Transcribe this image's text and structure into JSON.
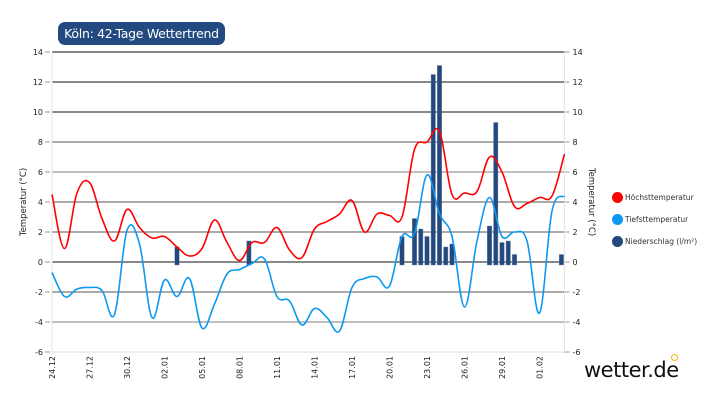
{
  "title": "Köln: 42-Tage Wettertrend",
  "logo": "wetter.de",
  "chart_data": {
    "type": "line+bar",
    "title": "Köln: 42-Tage Wettertrend",
    "ylabel_left": "Temperatur (°C)",
    "ylabel_right": "Temperatur (°C)",
    "ylim": [
      -6,
      14
    ],
    "yticks": [
      -6,
      -4,
      -2,
      0,
      2,
      4,
      6,
      8,
      10,
      12,
      14
    ],
    "grid": true,
    "legend_position": "right",
    "dates": [
      "24.12",
      "25.12",
      "26.12",
      "27.12",
      "28.12",
      "29.12",
      "30.12",
      "31.12",
      "01.01",
      "02.01",
      "03.01",
      "04.01",
      "05.01",
      "06.01",
      "07.01",
      "08.01",
      "09.01",
      "10.01",
      "11.01",
      "12.01",
      "13.01",
      "14.01",
      "15.01",
      "16.01",
      "17.01",
      "18.01",
      "19.01",
      "20.01",
      "21.01",
      "22.01",
      "23.01",
      "24.01",
      "25.01",
      "26.01",
      "27.01",
      "28.01",
      "29.01",
      "30.01",
      "31.01",
      "01.02",
      "02.02",
      "03.02"
    ],
    "xtick_labels": [
      "24.12",
      "27.12",
      "30.12",
      "02.01",
      "05.01",
      "08.01",
      "11.01",
      "14.01",
      "17.01",
      "20.01",
      "23.01",
      "26.01",
      "29.01",
      "01.02"
    ],
    "series": [
      {
        "name": "Höchsttemperatur",
        "kind": "line",
        "color": "#ff0000",
        "values": [
          4.5,
          0.9,
          4.6,
          5.3,
          2.9,
          1.4,
          3.5,
          2.3,
          1.6,
          1.7,
          1.0,
          0.4,
          0.9,
          2.8,
          1.3,
          0.1,
          1.3,
          1.3,
          2.3,
          0.8,
          0.3,
          2.2,
          2.7,
          3.2,
          4.1,
          2.0,
          3.2,
          3.1,
          3.0,
          7.5,
          8.0,
          8.7,
          4.5,
          4.6,
          4.7,
          7.0,
          6.0,
          3.7,
          3.9,
          4.3,
          4.4,
          7.2
        ]
      },
      {
        "name": "Tiefsttemperatur",
        "kind": "line",
        "color": "#0d99f2",
        "values": [
          -0.7,
          -2.3,
          -1.8,
          -1.7,
          -1.9,
          -3.5,
          2.1,
          1.2,
          -3.7,
          -1.2,
          -2.3,
          -1.1,
          -4.4,
          -2.8,
          -0.8,
          -0.5,
          -0.1,
          0.2,
          -2.3,
          -2.6,
          -4.2,
          -3.1,
          -3.7,
          -4.6,
          -1.7,
          -1.1,
          -1.0,
          -1.6,
          1.7,
          1.9,
          5.8,
          3.2,
          1.7,
          -3.0,
          1.4,
          4.3,
          1.7,
          2.0,
          1.4,
          -3.4,
          3.4,
          4.4
        ]
      },
      {
        "name": "Niederschlag (l/m²)",
        "kind": "bar",
        "color": "#23497e",
        "points": [
          {
            "t": "03.01 00:00",
            "v": 1.0
          },
          {
            "t": "08.01 18:00",
            "v": 1.4
          },
          {
            "t": "21.01 00:00",
            "v": 1.7
          },
          {
            "t": "22.01 00:00",
            "v": 2.9
          },
          {
            "t": "22.01 12:00",
            "v": 2.2
          },
          {
            "t": "23.01 00:00",
            "v": 1.7
          },
          {
            "t": "23.01 12:00",
            "v": 12.5
          },
          {
            "t": "24.01 00:00",
            "v": 13.1
          },
          {
            "t": "24.01 12:00",
            "v": 1.0
          },
          {
            "t": "25.01 00:00",
            "v": 1.2
          },
          {
            "t": "28.01 00:00",
            "v": 2.4
          },
          {
            "t": "28.01 12:00",
            "v": 9.3
          },
          {
            "t": "29.01 00:00",
            "v": 1.3
          },
          {
            "t": "29.01 12:00",
            "v": 1.4
          },
          {
            "t": "30.01 00:00",
            "v": 0.5
          },
          {
            "t": "02.02 18:00",
            "v": 0.5
          }
        ]
      }
    ]
  }
}
